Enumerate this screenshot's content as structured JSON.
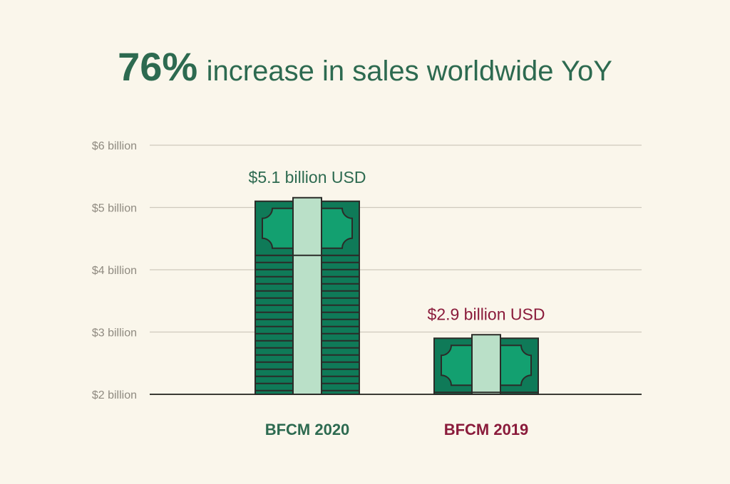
{
  "chart_data": {
    "type": "bar",
    "title_highlight": "76%",
    "title_rest": "increase in sales worldwide YoY",
    "categories": [
      "BFCM 2020",
      "BFCM 2019"
    ],
    "values": [
      5.1,
      2.9
    ],
    "data_labels": [
      "$5.1 billion USD",
      "$2.9 billion USD"
    ],
    "unit": "billion USD",
    "y_ticks": [
      {
        "value": 6,
        "label": "$6 billion"
      },
      {
        "value": 5,
        "label": "$5 billion"
      },
      {
        "value": 4,
        "label": "$4 billion"
      },
      {
        "value": 3,
        "label": "$3 billion"
      },
      {
        "value": 2,
        "label": "$2 billion"
      }
    ],
    "ylim": [
      2,
      6
    ],
    "grid": true,
    "colors": {
      "background": "#faf6eb",
      "title": "#2d6a50",
      "bfcm_2020": "#2d6a50",
      "bfcm_2019": "#8a1b3b",
      "bill_dark": "#0f7a58",
      "bill_light": "#13a070",
      "bill_band": "#bae0c8",
      "outline": "#2b2b28"
    }
  }
}
